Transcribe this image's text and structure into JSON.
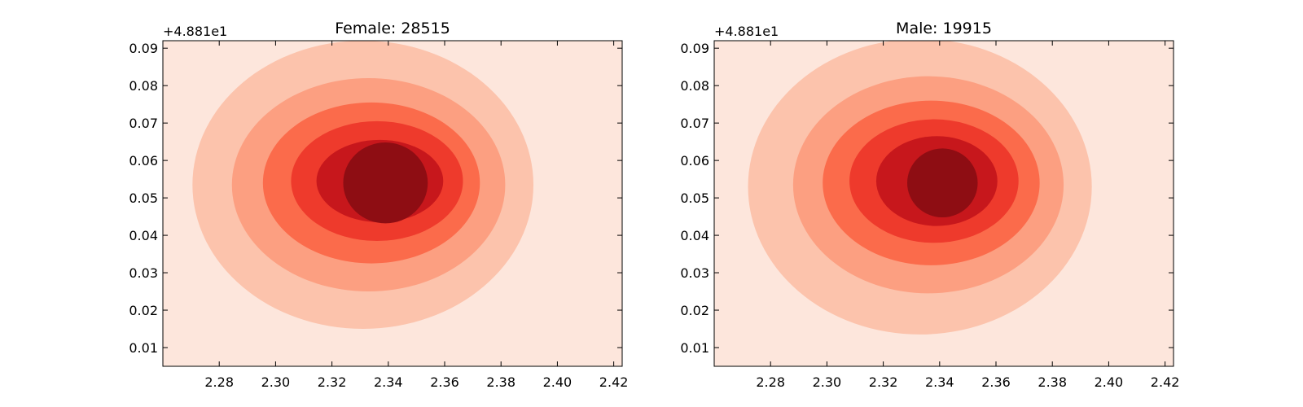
{
  "chart_data": [
    {
      "type": "contour",
      "title": "Female: 28515",
      "offset_label": "+4.881e1",
      "xlim": [
        2.26,
        2.423
      ],
      "ylim": [
        0.005,
        0.092
      ],
      "x_ticks": [
        "2.28",
        "2.30",
        "2.32",
        "2.34",
        "2.36",
        "2.38",
        "2.40",
        "2.42"
      ],
      "y_ticks": [
        "0.01",
        "0.02",
        "0.03",
        "0.04",
        "0.05",
        "0.06",
        "0.07",
        "0.08",
        "0.09"
      ],
      "grid": false,
      "colormap": [
        "#fde6dc",
        "#fcc3ac",
        "#fc9f81",
        "#fb6b4b",
        "#ee3a2c",
        "#c7171c",
        "#8e0d13"
      ],
      "peak": {
        "x": 2.336,
        "y": 0.0545
      },
      "levels": [
        {
          "level": 1,
          "center": [
            2.331,
            0.0535
          ],
          "rx": 0.0605,
          "ry": 0.0385
        },
        {
          "level": 2,
          "center": [
            2.333,
            0.0535
          ],
          "rx": 0.0485,
          "ry": 0.0285
        },
        {
          "level": 3,
          "center": [
            2.334,
            0.054
          ],
          "rx": 0.0385,
          "ry": 0.0215
        },
        {
          "level": 4,
          "center": [
            2.336,
            0.0545
          ],
          "rx": 0.0305,
          "ry": 0.016
        },
        {
          "level": 5,
          "center": [
            2.337,
            0.0545
          ],
          "rx": 0.0225,
          "ry": 0.011
        },
        {
          "level": 6,
          "center": [
            2.339,
            0.054
          ],
          "rx": 0.015,
          "ry": 0.0108
        }
      ]
    },
    {
      "type": "contour",
      "title": "Male: 19915",
      "offset_label": "+4.881e1",
      "xlim": [
        2.26,
        2.423
      ],
      "ylim": [
        0.005,
        0.092
      ],
      "x_ticks": [
        "2.28",
        "2.30",
        "2.32",
        "2.34",
        "2.36",
        "2.38",
        "2.40",
        "2.42"
      ],
      "y_ticks": [
        "0.01",
        "0.02",
        "0.03",
        "0.04",
        "0.05",
        "0.06",
        "0.07",
        "0.08",
        "0.09"
      ],
      "grid": false,
      "colormap": [
        "#fde6dc",
        "#fcc3ac",
        "#fc9f81",
        "#fb6b4b",
        "#ee3a2c",
        "#c7171c",
        "#8e0d13"
      ],
      "peak": {
        "x": 2.339,
        "y": 0.0545
      },
      "levels": [
        {
          "level": 1,
          "center": [
            2.333,
            0.053
          ],
          "rx": 0.061,
          "ry": 0.0395
        },
        {
          "level": 2,
          "center": [
            2.336,
            0.0535
          ],
          "rx": 0.048,
          "ry": 0.029
        },
        {
          "level": 3,
          "center": [
            2.337,
            0.054
          ],
          "rx": 0.0385,
          "ry": 0.022
        },
        {
          "level": 4,
          "center": [
            2.338,
            0.0545
          ],
          "rx": 0.03,
          "ry": 0.0165
        },
        {
          "level": 5,
          "center": [
            2.339,
            0.0545
          ],
          "rx": 0.0215,
          "ry": 0.012
        },
        {
          "level": 6,
          "center": [
            2.341,
            0.054
          ],
          "rx": 0.0125,
          "ry": 0.0092
        }
      ]
    }
  ]
}
